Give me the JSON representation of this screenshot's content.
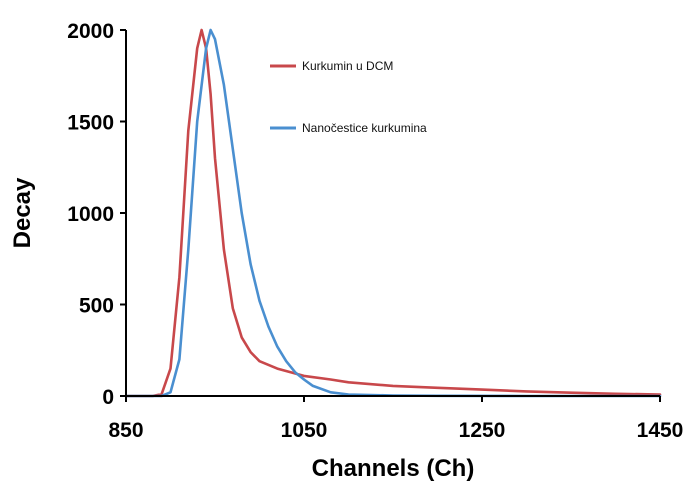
{
  "chart_data": {
    "type": "line",
    "title": "",
    "xlabel": "Channels (Ch)",
    "ylabel": "Decay",
    "xlim": [
      850,
      1450
    ],
    "ylim": [
      0,
      2000
    ],
    "x_ticks": [
      850,
      1050,
      1250,
      1450
    ],
    "y_ticks": [
      0,
      500,
      1000,
      1500,
      2000
    ],
    "grid": false,
    "legend_position": "top-right",
    "series": [
      {
        "name": "Kurkumin u DCM",
        "color": "#c8484b",
        "x": [
          850,
          880,
          890,
          900,
          910,
          920,
          930,
          935,
          940,
          945,
          950,
          960,
          970,
          980,
          990,
          1000,
          1020,
          1050,
          1080,
          1100,
          1150,
          1200,
          1250,
          1300,
          1350,
          1400,
          1450
        ],
        "y": [
          0,
          0,
          10,
          150,
          650,
          1450,
          1900,
          2000,
          1900,
          1650,
          1300,
          800,
          480,
          320,
          240,
          190,
          150,
          110,
          90,
          75,
          55,
          45,
          35,
          25,
          18,
          12,
          8
        ]
      },
      {
        "name": "Nanočestice kurkumina",
        "color": "#4a8fd0",
        "x": [
          850,
          880,
          890,
          900,
          910,
          920,
          930,
          940,
          945,
          950,
          960,
          970,
          980,
          990,
          1000,
          1010,
          1020,
          1030,
          1040,
          1050,
          1060,
          1080,
          1100,
          1150,
          1200,
          1300,
          1450
        ],
        "y": [
          0,
          0,
          0,
          20,
          200,
          800,
          1500,
          1900,
          2000,
          1950,
          1700,
          1350,
          1000,
          720,
          520,
          380,
          270,
          190,
          130,
          90,
          55,
          20,
          8,
          3,
          1,
          0,
          0
        ]
      }
    ]
  }
}
